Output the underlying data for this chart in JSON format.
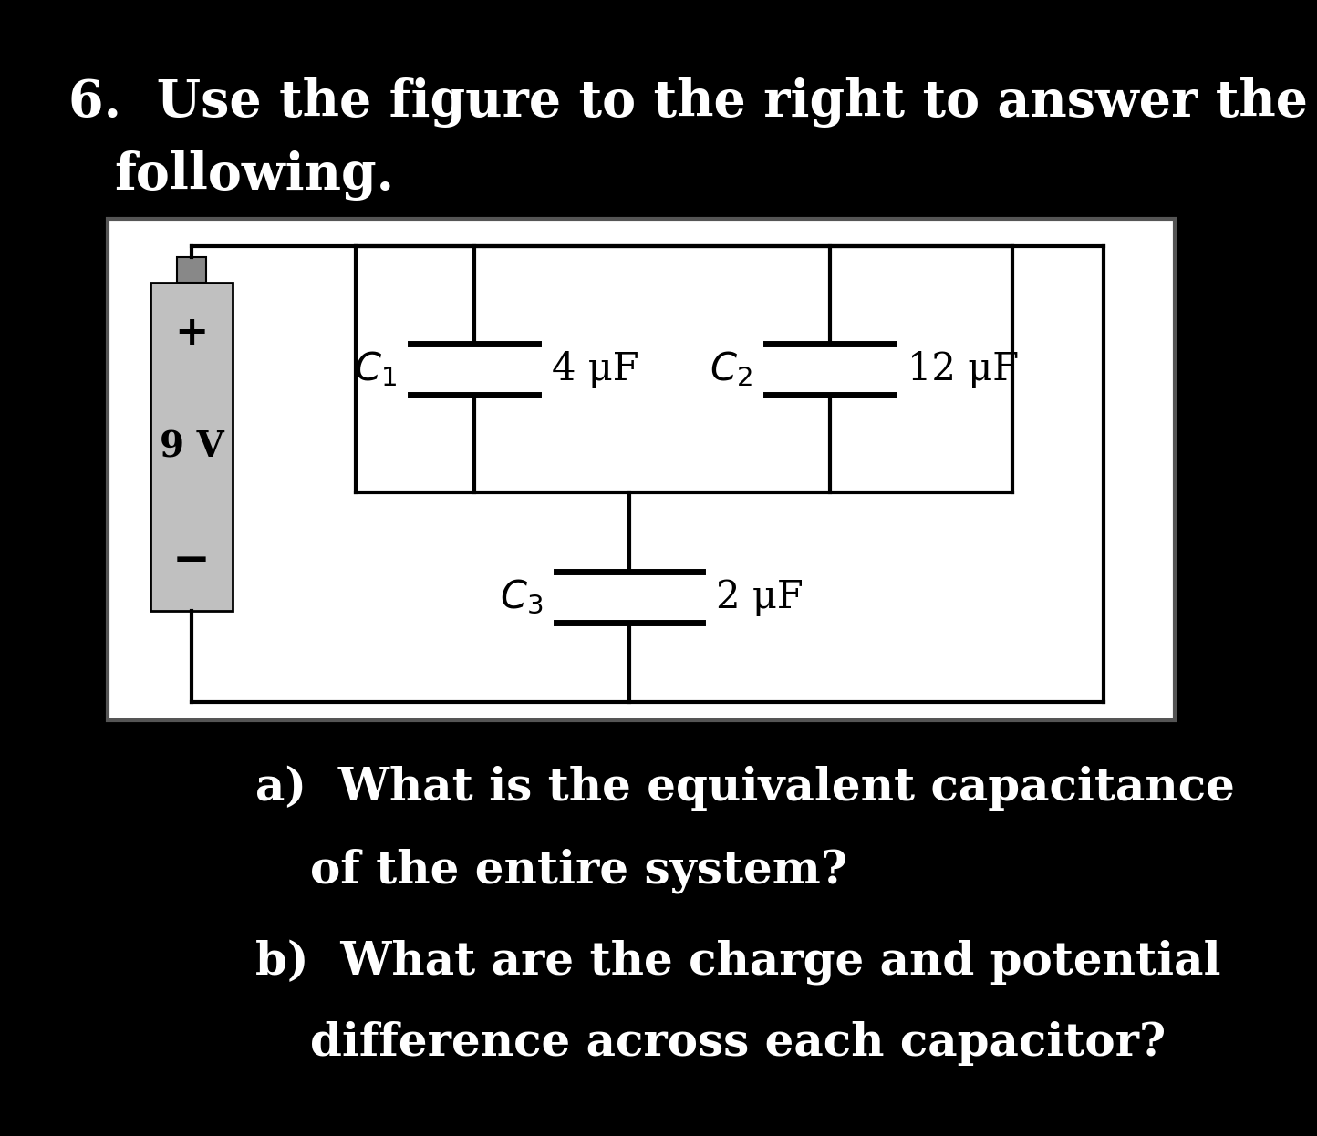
{
  "bg_color": "#000000",
  "circuit_bg": "#ffffff",
  "text_color": "#ffffff",
  "circuit_text_color": "#000000",
  "title_line1": "6.  Use the figure to the right to answer the",
  "title_line2": "following.",
  "question_a": "a)  What is the equivalent capacitance",
  "question_a2": "of the entire system?",
  "question_b": "b)  What are the charge and potential",
  "question_b2": "difference across each capacitor?",
  "battery_voltage": "9 V",
  "battery_plus": "+",
  "battery_minus": "−",
  "C1_label": "$C_1$",
  "C1_value": "4 μF",
  "C2_label": "$C_2$",
  "C2_value": "12 μF",
  "C3_label": "$C_3$",
  "C3_value": "2 μF",
  "font_size_title": 40,
  "font_size_question": 36,
  "font_size_circuit": 30,
  "font_size_battery": 28,
  "font_size_battery_label": 32
}
